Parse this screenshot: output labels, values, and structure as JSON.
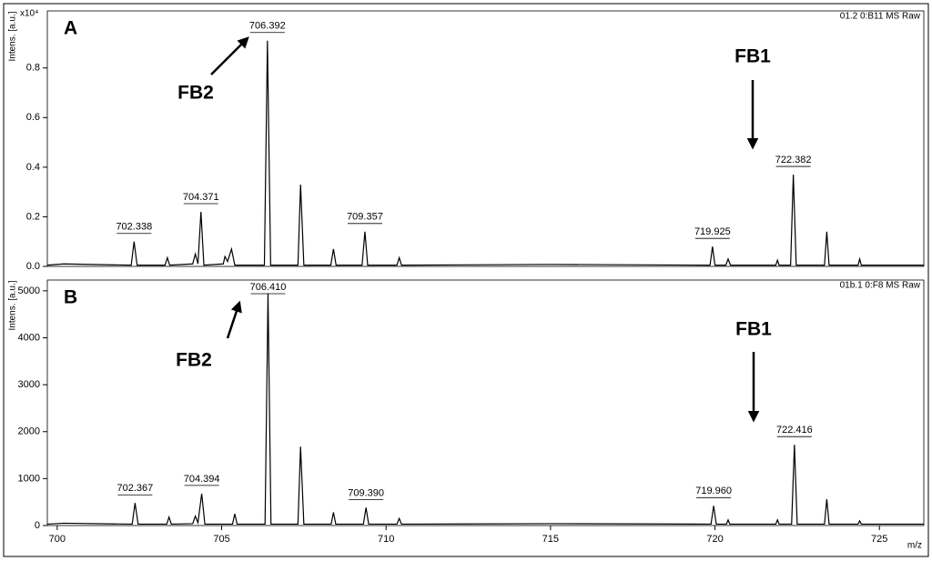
{
  "chart_data": [
    {
      "type": "line",
      "panel_label": "A",
      "header": "01.2 0:B11 MS Raw",
      "y_label": "Intens. [a.u.]",
      "y_multiplier": "x10⁴",
      "color": "#000000",
      "xlim": [
        699.7,
        726.35
      ],
      "ylim": [
        0,
        1.03
      ],
      "yticks": [
        {
          "value": 0,
          "label": "0.0"
        },
        0.2,
        0.4,
        0.6,
        0.8
      ],
      "x": [
        699.7,
        700.2,
        702.25,
        702.338,
        702.43,
        703.28,
        703.35,
        703.42,
        704.12,
        704.2,
        704.28,
        704.371,
        704.46,
        705.05,
        705.1,
        705.18,
        705.3,
        705.4,
        706.3,
        706.392,
        706.49,
        707.32,
        707.4,
        707.5,
        708.32,
        708.4,
        708.48,
        709.27,
        709.357,
        709.44,
        710.33,
        710.4,
        710.47,
        715,
        719.85,
        719.925,
        720.0,
        720.33,
        720.4,
        720.47,
        721.85,
        721.9,
        721.95,
        722.3,
        722.382,
        722.47,
        723.33,
        723.4,
        723.47,
        724.35,
        724.4,
        724.45,
        726.35
      ],
      "values": [
        0.005,
        0.01,
        0.005,
        0.1,
        0.005,
        0.005,
        0.035,
        0.005,
        0.01,
        0.05,
        0.01,
        0.22,
        0.005,
        0.01,
        0.04,
        0.02,
        0.07,
        0.005,
        0.005,
        0.91,
        0.005,
        0.005,
        0.33,
        0.005,
        0.005,
        0.07,
        0.005,
        0.005,
        0.14,
        0.005,
        0.005,
        0.035,
        0.005,
        0.008,
        0.005,
        0.08,
        0.005,
        0.005,
        0.03,
        0.005,
        0.005,
        0.025,
        0.005,
        0.005,
        0.37,
        0.005,
        0.005,
        0.14,
        0.005,
        0.005,
        0.03,
        0.005,
        0.005
      ],
      "peak_labels": [
        702.338,
        704.371,
        706.392,
        709.357,
        719.925,
        722.382
      ],
      "annotations": [
        "FB2",
        "FB1"
      ]
    },
    {
      "type": "line",
      "panel_label": "B",
      "header": "01b.1 0:F8 MS Raw",
      "y_label": "Intens. [a.u.]",
      "x_label": "m/z",
      "color": "#000000",
      "xlim": [
        699.7,
        726.35
      ],
      "ylim": [
        0,
        5230
      ],
      "xticks": [
        700,
        705,
        710,
        715,
        720,
        725
      ],
      "yticks": [
        0,
        1000,
        2000,
        3000,
        4000,
        5000
      ],
      "x": [
        699.7,
        700.2,
        702.28,
        702.367,
        702.46,
        703.33,
        703.4,
        703.47,
        704.12,
        704.2,
        704.28,
        704.394,
        704.49,
        705.33,
        705.4,
        705.47,
        706.32,
        706.41,
        706.5,
        707.32,
        707.4,
        707.5,
        708.33,
        708.4,
        708.47,
        709.31,
        709.39,
        709.47,
        710.33,
        710.4,
        710.47,
        715,
        719.88,
        719.96,
        720.04,
        720.35,
        720.4,
        720.45,
        721.85,
        721.9,
        721.95,
        722.33,
        722.416,
        722.5,
        723.33,
        723.4,
        723.47,
        724.35,
        724.4,
        724.45,
        726.35
      ],
      "values": [
        30,
        50,
        30,
        480,
        30,
        30,
        180,
        30,
        40,
        200,
        60,
        680,
        30,
        30,
        250,
        30,
        30,
        4950,
        30,
        30,
        1680,
        30,
        30,
        280,
        30,
        30,
        380,
        30,
        30,
        150,
        30,
        40,
        30,
        420,
        30,
        30,
        120,
        30,
        30,
        120,
        30,
        30,
        1720,
        30,
        30,
        560,
        30,
        30,
        100,
        30,
        30
      ],
      "peak_labels": [
        702.367,
        704.394,
        {
          "value": 706.41,
          "label": "706.410"
        },
        {
          "value": 709.39,
          "label": "709.390"
        },
        {
          "value": 719.96,
          "label": "719.960"
        },
        722.416
      ],
      "annotations": [
        "FB2",
        "FB1"
      ]
    }
  ]
}
